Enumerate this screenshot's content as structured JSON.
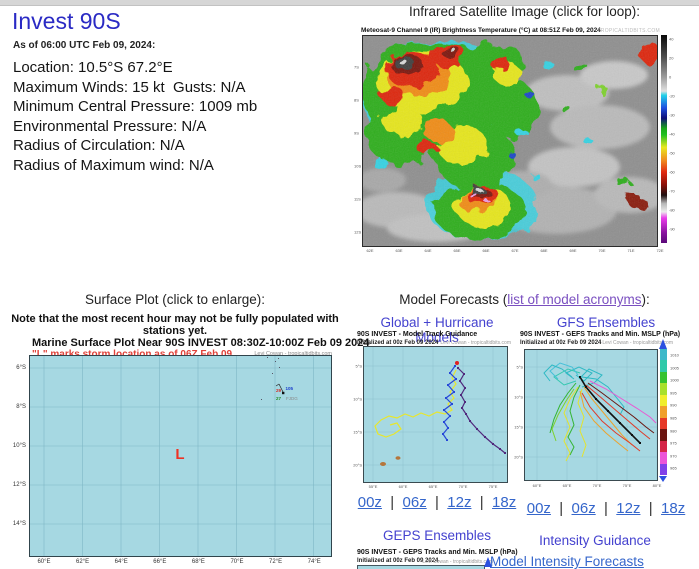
{
  "storm": {
    "title": "Invest 90S",
    "as_of": "As of 06:00 UTC Feb 09, 2024:",
    "info_lines": [
      "Location: 10.5°S 67.2°E",
      "Maximum Winds: 15 kt  Gusts: N/A",
      "Minimum Central Pressure: 1009 mb",
      "Environmental Pressure: N/A",
      "Radius of Circulation: N/A",
      "Radius of Maximum wind: N/A"
    ]
  },
  "satellite": {
    "header": "Infrared Satellite Image (click for loop):",
    "image_title": "Meteosat-9 Channel 9 (IR) Brightness Temperature (°C) at 08:51Z Feb 09, 2024",
    "watermark": "TROPICALTIDBITS.COM",
    "lat_labels": [
      "7S",
      "8S",
      "9S",
      "10S",
      "11S",
      "12S"
    ],
    "lon_labels": [
      "62E",
      "63E",
      "64E",
      "65E",
      "66E",
      "67E",
      "68E",
      "69E",
      "70E",
      "71E",
      "72E"
    ],
    "colorbar_labels": [
      "40",
      "20",
      "0",
      "-20",
      "-30",
      "-40",
      "-50",
      "-60",
      "-70",
      "-80",
      "-90"
    ]
  },
  "surface_plot": {
    "header": "Surface Plot (click to enlarge):",
    "note": "Note that the most recent hour may not be fully populated with stations yet.",
    "title": "Marine Surface Plot Near 90S INVEST 08:30Z-10:00Z Feb 09 2024",
    "storm_note": "\"L\" marks storm location as of 06Z Feb 09",
    "credit": "Levi Cowan - tropicaltidbits.com",
    "x_labels": [
      "60°E",
      "62°E",
      "64°E",
      "66°E",
      "68°E",
      "70°E",
      "72°E",
      "74°E"
    ],
    "y_labels": [
      "6°S",
      "8°S",
      "10°S",
      "12°S",
      "14°S"
    ],
    "storm_marker": "L",
    "station": {
      "id": "FJDG",
      "temp": "29",
      "dewpoint": "27",
      "pressure": "105"
    }
  },
  "models": {
    "header_pre": "Model Forecasts (",
    "acronyms_link": "list of model acronyms",
    "header_post": "):",
    "cycles": [
      "00z",
      "06z",
      "12z",
      "18z"
    ],
    "global": {
      "header": "Global + Hurricane Models",
      "fig_title": "90S INVEST - Model Track Guidance",
      "init": "Initialized at 00z Feb 09 2024",
      "credit": "Levi Cowan - tropicaltidbits.com",
      "x_labels": [
        "55°E",
        "60°E",
        "65°E",
        "70°E",
        "75°E"
      ],
      "y_labels": [
        "5°S",
        "10°S",
        "15°S",
        "20°S"
      ],
      "tracks": [
        {
          "c": "#e8e62c",
          "w": 1.2,
          "pts": [
            [
              93,
              24
            ],
            [
              89,
              32
            ],
            [
              93,
              38
            ],
            [
              87,
              46
            ],
            [
              91,
              52
            ],
            [
              85,
              58
            ],
            [
              89,
              64
            ],
            [
              82,
              68
            ],
            [
              74,
              66
            ],
            [
              66,
              70
            ],
            [
              58,
              67
            ],
            [
              50,
              71
            ],
            [
              42,
              68
            ],
            [
              34,
              72
            ],
            [
              26,
              70
            ],
            [
              18,
              74
            ],
            [
              12,
              80
            ],
            [
              15,
              88
            ],
            [
              23,
              91
            ],
            [
              31,
              88
            ],
            [
              38,
              83
            ],
            [
              34,
              77
            ],
            [
              27,
              79
            ]
          ]
        },
        {
          "c": "#2647d8",
          "w": 1.2,
          "dots": true,
          "pts": [
            [
              92,
              20
            ],
            [
              87,
              27
            ],
            [
              93,
              33
            ],
            [
              85,
              39
            ],
            [
              91,
              46
            ],
            [
              83,
              52
            ],
            [
              89,
              58
            ],
            [
              81,
              64
            ],
            [
              87,
              70
            ],
            [
              81,
              76
            ],
            [
              85,
              82
            ],
            [
              80,
              88
            ],
            [
              84,
              94
            ]
          ]
        },
        {
          "c": "#50287c",
          "w": 1.2,
          "dots": true,
          "pts": [
            [
              95,
              22
            ],
            [
              101,
              28
            ],
            [
              97,
              35
            ],
            [
              102,
              42
            ],
            [
              98,
              49
            ],
            [
              102,
              56
            ],
            [
              99,
              62
            ],
            [
              103,
              68
            ],
            [
              107,
              75
            ],
            [
              114,
              83
            ],
            [
              122,
              91
            ],
            [
              130,
              98
            ],
            [
              137,
              103
            ],
            [
              142,
              107
            ]
          ]
        }
      ]
    },
    "gefs": {
      "header": "GFS Ensembles",
      "fig_title": "90S INVEST - GEFS Tracks and Min. MSLP (hPa)",
      "init": "Initialized at 00z Feb 09 2024",
      "credit": "Levi Cowan - tropicaltidbits.com",
      "x_labels": [
        "60°E",
        "65°E",
        "70°E",
        "75°E",
        "80°E"
      ],
      "y_labels": [
        "5°S",
        "10°S",
        "15°S",
        "20°S"
      ],
      "colorbar": {
        "colors": [
          "#3db8c9",
          "#2fc9a8",
          "#35c230",
          "#a8e02c",
          "#f0ee2c",
          "#f0a02c",
          "#e63928",
          "#6b1410",
          "#d42547",
          "#ec54d8",
          "#8040e8"
        ],
        "labels": [
          "1010",
          "1005",
          "1000",
          "995",
          "990",
          "985",
          "980",
          "975",
          "970",
          "965"
        ]
      },
      "tracks": [
        {
          "c": "#2fb9c4",
          "pts": [
            [
              50,
              30
            ],
            [
              42,
              24
            ],
            [
              55,
              18
            ],
            [
              68,
              24
            ],
            [
              60,
              32
            ],
            [
              52,
              26
            ]
          ]
        },
        {
          "c": "#2fb9c4",
          "pts": [
            [
              55,
              30
            ],
            [
              65,
              20
            ],
            [
              78,
              26
            ],
            [
              70,
              34
            ],
            [
              58,
              38
            ]
          ]
        },
        {
          "c": "#35c8b0",
          "pts": [
            [
              52,
              32
            ],
            [
              40,
              36
            ],
            [
              30,
              28
            ],
            [
              44,
              20
            ],
            [
              56,
              24
            ]
          ]
        },
        {
          "c": "#2fb9c4",
          "pts": [
            [
              58,
              28
            ],
            [
              72,
              30
            ],
            [
              84,
              38
            ],
            [
              92,
              48
            ],
            [
              100,
              58
            ],
            [
              96,
              66
            ]
          ]
        },
        {
          "c": "#45c0d8",
          "pts": [
            [
              54,
              26
            ],
            [
              48,
              18
            ],
            [
              36,
              14
            ],
            [
              26,
              22
            ],
            [
              34,
              30
            ]
          ]
        },
        {
          "c": "#2fb9c4",
          "pts": [
            [
              48,
              28
            ],
            [
              38,
              20
            ],
            [
              28,
              16
            ],
            [
              20,
              24
            ],
            [
              26,
              32
            ]
          ]
        },
        {
          "c": "#33b533",
          "pts": [
            [
              52,
              34
            ],
            [
              44,
              44
            ],
            [
              36,
              56
            ],
            [
              30,
              70
            ],
            [
              26,
              84
            ]
          ]
        },
        {
          "c": "#33b533",
          "pts": [
            [
              56,
              36
            ],
            [
              50,
              48
            ],
            [
              46,
              62
            ],
            [
              50,
              76
            ],
            [
              44,
              88
            ],
            [
              50,
              98
            ],
            [
              46,
              106
            ]
          ]
        },
        {
          "c": "#7ed12e",
          "pts": [
            [
              50,
              40
            ],
            [
              42,
              52
            ],
            [
              34,
              66
            ],
            [
              28,
              80
            ],
            [
              32,
              92
            ]
          ]
        },
        {
          "c": "#e3e32e",
          "pts": [
            [
              54,
              38
            ],
            [
              46,
              50
            ],
            [
              40,
              64
            ],
            [
              46,
              78
            ],
            [
              40,
              92
            ],
            [
              46,
              104
            ],
            [
              42,
              112
            ]
          ]
        },
        {
          "c": "#e3e32e",
          "pts": [
            [
              58,
              40
            ],
            [
              54,
              54
            ],
            [
              60,
              68
            ],
            [
              56,
              82
            ],
            [
              62,
              96
            ],
            [
              58,
              108
            ]
          ]
        },
        {
          "c": "#eda22e",
          "pts": [
            [
              60,
              38
            ],
            [
              68,
              50
            ],
            [
              78,
              62
            ],
            [
              88,
              74
            ],
            [
              98,
              86
            ],
            [
              108,
              96
            ]
          ]
        },
        {
          "c": "#eda22e",
          "pts": [
            [
              56,
              42
            ],
            [
              60,
              58
            ],
            [
              70,
              72
            ],
            [
              82,
              84
            ],
            [
              94,
              94
            ],
            [
              104,
              102
            ]
          ]
        },
        {
          "c": "#df3b2a",
          "pts": [
            [
              62,
              36
            ],
            [
              74,
              46
            ],
            [
              88,
              58
            ],
            [
              102,
              70
            ],
            [
              116,
              82
            ],
            [
              126,
              90
            ]
          ]
        },
        {
          "c": "#df3b2a",
          "pts": [
            [
              58,
              44
            ],
            [
              66,
              58
            ],
            [
              78,
              72
            ],
            [
              92,
              84
            ],
            [
              106,
              94
            ],
            [
              116,
              102
            ]
          ]
        },
        {
          "c": "#6b1712",
          "pts": [
            [
              64,
              34
            ],
            [
              78,
              44
            ],
            [
              94,
              56
            ],
            [
              110,
              68
            ],
            [
              122,
              78
            ],
            [
              130,
              84
            ]
          ]
        },
        {
          "c": "#e95ad2",
          "pts": [
            [
              66,
              32
            ],
            [
              82,
              40
            ],
            [
              98,
              50
            ],
            [
              114,
              60
            ],
            [
              126,
              68
            ],
            [
              132,
              74
            ]
          ]
        },
        {
          "c": "#111111",
          "w": 1.6,
          "dots": true,
          "pts": [
            [
              56,
              28
            ],
            [
              62,
              38
            ],
            [
              72,
              50
            ],
            [
              84,
              62
            ],
            [
              96,
              74
            ],
            [
              108,
              86
            ],
            [
              116,
              94
            ]
          ]
        }
      ]
    },
    "geps": {
      "header": "GEPS Ensembles",
      "fig_title": "90S INVEST - GEPS Tracks and Min. MSLP (hPa)",
      "init": "Initialized at 00z Feb 09 2024",
      "credit": "Levi Cowan - tropicaltidbits.com"
    },
    "intensity": {
      "header": "Intensity Guidance",
      "link": "Model Intensity Forecasts"
    }
  }
}
